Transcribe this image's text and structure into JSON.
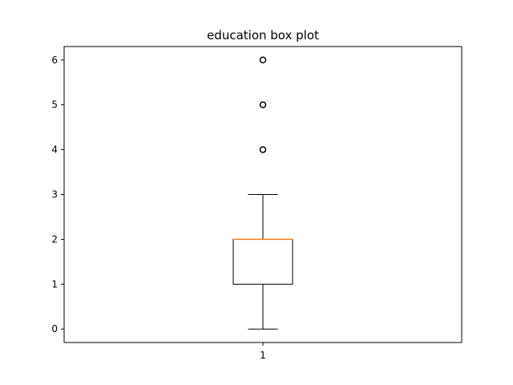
{
  "chart_data": {
    "type": "box",
    "title": "education box plot",
    "xlabel": "",
    "ylabel": "",
    "categories": [
      "1"
    ],
    "ylim": [
      -0.3,
      6.3
    ],
    "yticks": [
      0,
      1,
      2,
      3,
      4,
      5,
      6
    ],
    "grid": false,
    "boxes": [
      {
        "category": "1",
        "whisker_low": 0,
        "q1": 1,
        "median": 2,
        "q3": 2,
        "whisker_high": 3,
        "outliers": [
          4,
          5,
          6
        ]
      }
    ],
    "colors": {
      "median": "#ff7f0e",
      "box": "#000000",
      "outlier": "#000000"
    }
  }
}
